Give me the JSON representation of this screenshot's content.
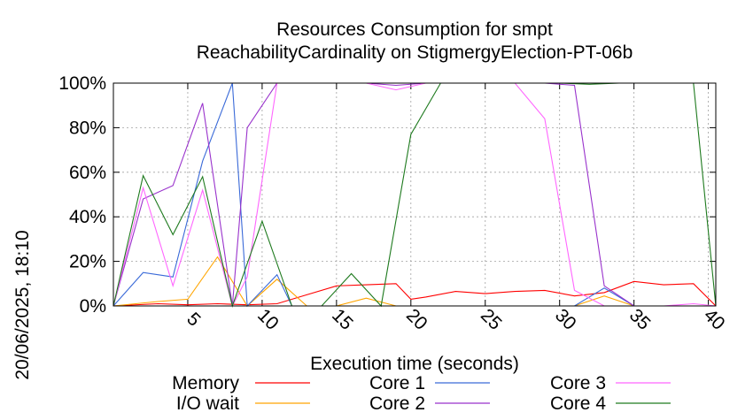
{
  "chart_data": {
    "type": "line",
    "title": "Resources Consumption for smpt",
    "subtitle": "ReachabilityCardinality on StigmergyElection-PT-06b",
    "xlabel": "Execution time (seconds)",
    "ylabel": "",
    "side_label": "20/06/2025, 18:10",
    "xlim": [
      0,
      40.5
    ],
    "ylim": [
      0,
      100
    ],
    "x_ticks": [
      5,
      10,
      15,
      20,
      25,
      30,
      35,
      40
    ],
    "y_ticks": [
      0,
      20,
      40,
      60,
      80,
      100
    ],
    "y_tick_suffix": "%",
    "grid": true,
    "legend_position": "bottom",
    "series": [
      {
        "name": "Memory",
        "color": "#ff0000",
        "x": [
          0,
          3,
          5,
          7,
          9,
          11,
          13,
          15,
          17,
          19,
          20,
          21,
          23,
          25,
          27,
          29,
          31,
          33,
          35,
          37,
          39,
          40.5
        ],
        "y": [
          0,
          1,
          0.5,
          1,
          0.5,
          1,
          5,
          9,
          9.5,
          10,
          3,
          4,
          6.5,
          5.5,
          6.5,
          7,
          4.5,
          6,
          11,
          9.5,
          10,
          0
        ]
      },
      {
        "name": "I/O wait",
        "color": "#ffa500",
        "x": [
          0,
          3,
          5,
          7,
          9,
          11,
          13,
          15,
          17,
          19,
          21,
          23,
          25,
          27,
          29,
          31,
          33,
          35,
          37,
          39,
          40.5
        ],
        "y": [
          0,
          2,
          3,
          22,
          0,
          12,
          0,
          0,
          3.5,
          0,
          0,
          0,
          0,
          0,
          0,
          0,
          4.5,
          0,
          0,
          0,
          0
        ]
      },
      {
        "name": "Core 1",
        "color": "#3a6ad8",
        "x": [
          0,
          2,
          4,
          6,
          8,
          9,
          11,
          12,
          13,
          15,
          17,
          19,
          21,
          23,
          25,
          27,
          29,
          31,
          33,
          35,
          37,
          39,
          40.5
        ],
        "y": [
          0,
          15,
          13,
          65,
          100,
          0,
          14,
          0,
          0,
          0,
          0,
          0,
          0,
          0,
          0,
          0,
          0,
          0,
          8,
          0,
          0,
          0,
          0
        ]
      },
      {
        "name": "Core 2",
        "color": "#9932cc",
        "x": [
          0,
          2,
          4,
          6,
          8,
          9,
          11,
          13,
          15,
          17,
          19,
          21,
          23,
          25,
          27,
          29,
          31,
          33,
          35,
          37,
          39,
          40.5
        ],
        "y": [
          0,
          48,
          54,
          91,
          0,
          80,
          100,
          100,
          100,
          100,
          99,
          100,
          100,
          100,
          100,
          100,
          99,
          9,
          0,
          0,
          0,
          0
        ]
      },
      {
        "name": "Core 3",
        "color": "#ff66ff",
        "x": [
          0,
          2,
          4,
          6,
          8,
          9,
          11,
          13,
          15,
          17,
          19,
          21,
          23,
          25,
          27,
          29,
          31,
          33,
          35,
          37,
          39,
          40.5
        ],
        "y": [
          0,
          53,
          9,
          52,
          0,
          13,
          100,
          100,
          100,
          100,
          97,
          100,
          100,
          100,
          100,
          84,
          7,
          0,
          0,
          0,
          1,
          0
        ]
      },
      {
        "name": "Core 4",
        "color": "#1e7a1e",
        "x": [
          0,
          2,
          4,
          6,
          8,
          10,
          12,
          14,
          16,
          18,
          20,
          22,
          24,
          26,
          28,
          30,
          32,
          34,
          36,
          38,
          39,
          40.5
        ],
        "y": [
          0,
          58.5,
          32,
          58,
          0,
          38,
          0,
          0,
          14.5,
          0,
          77,
          100,
          100,
          100,
          100,
          100,
          99.5,
          100,
          100,
          100,
          100,
          0
        ]
      }
    ]
  }
}
